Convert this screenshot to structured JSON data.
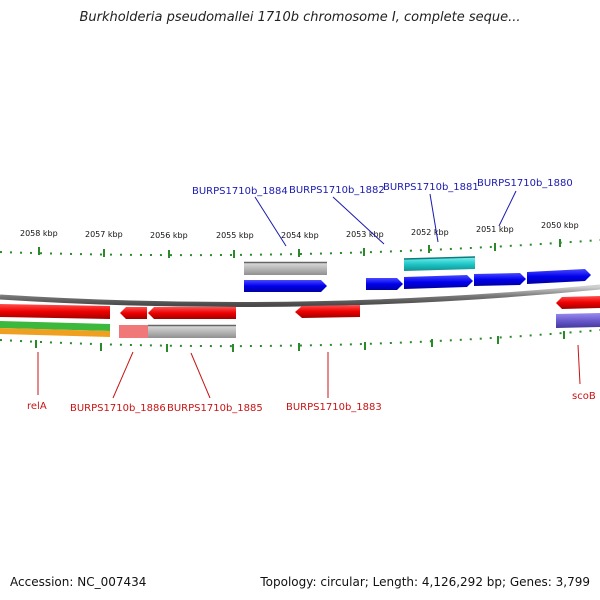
{
  "title": "Burkholderia pseudomallei 1710b chromosome I, complete seque...",
  "accession": "Accession: NC_007434",
  "summary": "Topology: circular; Length: 4,126,292 bp; Genes: 3,799",
  "scale_labels": [
    "2058 kbp",
    "2057 kbp",
    "2056 kbp",
    "2055 kbp",
    "2054 kbp",
    "2053 kbp",
    "2052 kbp",
    "2051 kbp",
    "2050 kbp"
  ],
  "top_genes": [
    "BURPS1710b_1884",
    "BURPS1710b_1882",
    "BURPS1710b_1881",
    "BURPS1710b_1880"
  ],
  "bottom_genes": [
    "relA",
    "BURPS1710b_1886",
    "BURPS1710b_1885",
    "BURPS1710b_1883",
    "scoB"
  ],
  "colors": {
    "forward_gene": "#0000ee",
    "reverse_gene": "#ee0000",
    "cyan_track": "#1fc8c8",
    "gray_track": "#b8b8b8",
    "purple_track": "#6a5acd",
    "tick": "#2a8a2a"
  }
}
